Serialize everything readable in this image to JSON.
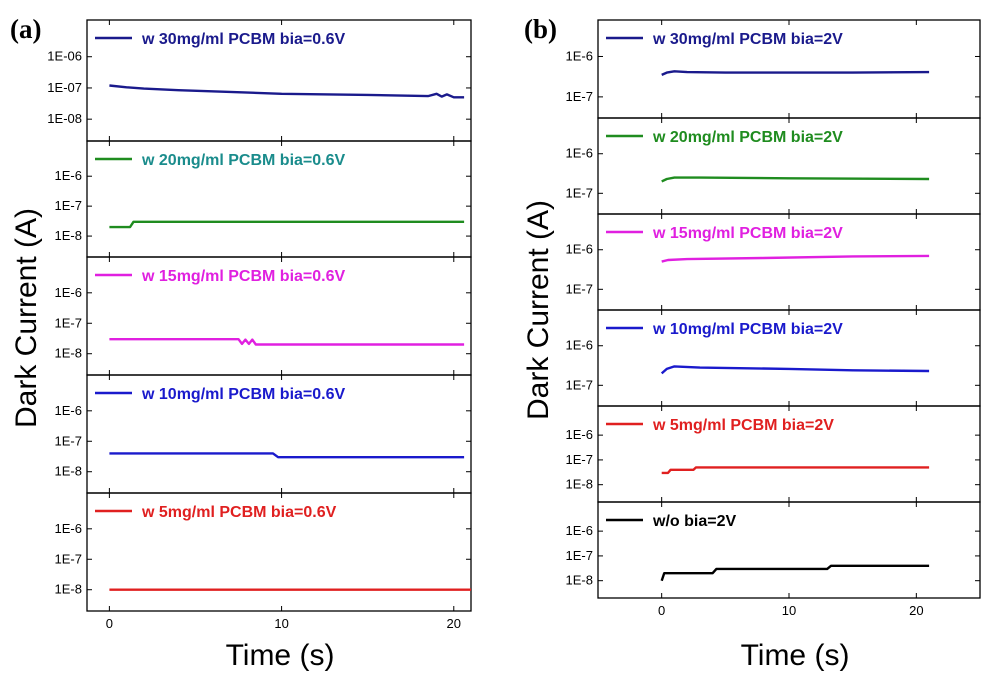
{
  "figure": {
    "ylabel": "Dark Current (A)",
    "xlabel": "Time (s)"
  },
  "chart_data": [
    {
      "type": "line",
      "panel_label": "(a)",
      "xlabel": "Time (s)",
      "ylabel": "Dark Current (A)",
      "xlim": [
        -1.3,
        21
      ],
      "x_ticks": [
        0,
        10,
        20
      ],
      "y_scale": "log",
      "grid": false,
      "legend_placement": "top-left",
      "series": [
        {
          "name": "w 30mg/ml PCBM bia=0.6V",
          "color": "#1a1a8c",
          "label_color": "#1a1a8c",
          "ylim": [
            2e-09,
            1.5e-05
          ],
          "y_ticks": [
            {
              "value": 1e-06,
              "label": "1E-06"
            },
            {
              "value": 1e-07,
              "label": "1E-07"
            },
            {
              "value": 1e-08,
              "label": "1E-08"
            }
          ],
          "points": [
            [
              0,
              1.2e-07
            ],
            [
              1,
              1.05e-07
            ],
            [
              2,
              9.5e-08
            ],
            [
              4,
              8.5e-08
            ],
            [
              7,
              7.5e-08
            ],
            [
              10,
              6.5e-08
            ],
            [
              15,
              6e-08
            ],
            [
              18.5,
              5.5e-08
            ],
            [
              19,
              6.5e-08
            ],
            [
              19.3,
              5.3e-08
            ],
            [
              19.6,
              6.2e-08
            ],
            [
              20,
              5e-08
            ],
            [
              20.6,
              5e-08
            ]
          ]
        },
        {
          "name": "w 20mg/ml PCBM bia=0.6V",
          "color": "#1f8c1f",
          "label_color": "#1a8c8c",
          "ylim": [
            2e-09,
            1.5e-05
          ],
          "y_ticks": [
            {
              "value": 1e-06,
              "label": "1E-6"
            },
            {
              "value": 1e-07,
              "label": "1E-7"
            },
            {
              "value": 1e-08,
              "label": "1E-8"
            }
          ],
          "points": [
            [
              0,
              2e-08
            ],
            [
              1.2,
              2e-08
            ],
            [
              1.4,
              3e-08
            ],
            [
              20.6,
              3e-08
            ]
          ]
        },
        {
          "name": "w 15mg/ml PCBM bia=0.6V",
          "color": "#e020e0",
          "label_color": "#e020e0",
          "ylim": [
            2e-09,
            1.5e-05
          ],
          "y_ticks": [
            {
              "value": 1e-06,
              "label": "1E-6"
            },
            {
              "value": 1e-07,
              "label": "1E-7"
            },
            {
              "value": 1e-08,
              "label": "1E-8"
            }
          ],
          "points": [
            [
              0,
              3e-08
            ],
            [
              7.5,
              3e-08
            ],
            [
              7.7,
              2.1e-08
            ],
            [
              7.9,
              2.9e-08
            ],
            [
              8.1,
              2.1e-08
            ],
            [
              8.3,
              2.9e-08
            ],
            [
              8.5,
              2e-08
            ],
            [
              20.6,
              2e-08
            ]
          ]
        },
        {
          "name": "w 10mg/ml PCBM bia=0.6V",
          "color": "#1a1acc",
          "label_color": "#1a1acc",
          "ylim": [
            2e-09,
            1.5e-05
          ],
          "y_ticks": [
            {
              "value": 1e-06,
              "label": "1E-6"
            },
            {
              "value": 1e-07,
              "label": "1E-7"
            },
            {
              "value": 1e-08,
              "label": "1E-8"
            }
          ],
          "points": [
            [
              0,
              4e-08
            ],
            [
              9.5,
              4e-08
            ],
            [
              9.8,
              3e-08
            ],
            [
              20.6,
              3e-08
            ]
          ]
        },
        {
          "name": "w 5mg/ml PCBM bia=0.6V",
          "color": "#e02020",
          "label_color": "#e02020",
          "ylim": [
            2e-09,
            1.5e-05
          ],
          "y_ticks": [
            {
              "value": 1e-06,
              "label": "1E-6"
            },
            {
              "value": 1e-07,
              "label": "1E-7"
            },
            {
              "value": 1e-08,
              "label": "1E-8"
            }
          ],
          "points": [
            [
              0,
              1e-08
            ],
            [
              21,
              1e-08
            ]
          ]
        }
      ]
    },
    {
      "type": "line",
      "panel_label": "(b)",
      "xlabel": "Time (s)",
      "ylabel": "Dark Current (A)",
      "xlim": [
        -5,
        25
      ],
      "x_ticks": [
        0,
        10,
        20
      ],
      "y_scale": "log",
      "grid": false,
      "legend_placement": "top-left",
      "series": [
        {
          "name": "w 30mg/ml PCBM bia=2V",
          "color": "#1a1a8c",
          "label_color": "#1a1a8c",
          "ylim": [
            3e-08,
            8e-06
          ],
          "y_ticks": [
            {
              "value": 1e-06,
              "label": "1E-6"
            },
            {
              "value": 1e-07,
              "label": "1E-7"
            }
          ],
          "points": [
            [
              0,
              3.5e-07
            ],
            [
              0.4,
              4e-07
            ],
            [
              1,
              4.3e-07
            ],
            [
              2,
              4.1e-07
            ],
            [
              5,
              4e-07
            ],
            [
              10,
              4e-07
            ],
            [
              15,
              4e-07
            ],
            [
              21,
              4.1e-07
            ]
          ]
        },
        {
          "name": "w 20mg/ml PCBM bia=2V",
          "color": "#1f8c1f",
          "label_color": "#1f8c1f",
          "ylim": [
            3e-08,
            8e-06
          ],
          "y_ticks": [
            {
              "value": 1e-06,
              "label": "1E-6"
            },
            {
              "value": 1e-07,
              "label": "1E-7"
            }
          ],
          "points": [
            [
              0,
              2e-07
            ],
            [
              0.4,
              2.3e-07
            ],
            [
              1,
              2.5e-07
            ],
            [
              3,
              2.5e-07
            ],
            [
              10,
              2.4e-07
            ],
            [
              21,
              2.3e-07
            ]
          ]
        },
        {
          "name": "w 15mg/ml PCBM bia=2V",
          "color": "#e020e0",
          "label_color": "#e020e0",
          "ylim": [
            3e-08,
            8e-06
          ],
          "y_ticks": [
            {
              "value": 1e-06,
              "label": "1E-6"
            },
            {
              "value": 1e-07,
              "label": "1E-7"
            }
          ],
          "points": [
            [
              0,
              5e-07
            ],
            [
              0.5,
              5.5e-07
            ],
            [
              2,
              5.8e-07
            ],
            [
              8,
              6.2e-07
            ],
            [
              15,
              6.8e-07
            ],
            [
              21,
              7e-07
            ]
          ]
        },
        {
          "name": "w 10mg/ml PCBM bia=2V",
          "color": "#1a1acc",
          "label_color": "#1a1acc",
          "ylim": [
            3e-08,
            8e-06
          ],
          "y_ticks": [
            {
              "value": 1e-06,
              "label": "1E-6"
            },
            {
              "value": 1e-07,
              "label": "1E-7"
            }
          ],
          "points": [
            [
              0,
              2e-07
            ],
            [
              0.4,
              2.6e-07
            ],
            [
              1,
              3e-07
            ],
            [
              3,
              2.8e-07
            ],
            [
              10,
              2.6e-07
            ],
            [
              15,
              2.4e-07
            ],
            [
              21,
              2.3e-07
            ]
          ]
        },
        {
          "name": "w 5mg/ml PCBM bia=2V",
          "color": "#e02020",
          "label_color": "#e02020",
          "ylim": [
            2e-09,
            1.5e-05
          ],
          "y_ticks": [
            {
              "value": 1e-06,
              "label": "1E-6"
            },
            {
              "value": 1e-07,
              "label": "1E-7"
            },
            {
              "value": 1e-08,
              "label": "1E-8"
            }
          ],
          "points": [
            [
              0,
              3e-08
            ],
            [
              0.5,
              3e-08
            ],
            [
              0.7,
              4e-08
            ],
            [
              2.5,
              4e-08
            ],
            [
              2.7,
              5e-08
            ],
            [
              21,
              5e-08
            ]
          ]
        },
        {
          "name": "w/o bia=2V",
          "color": "#000000",
          "label_color": "#000000",
          "ylim": [
            2e-09,
            1.5e-05
          ],
          "y_ticks": [
            {
              "value": 1e-06,
              "label": "1E-6"
            },
            {
              "value": 1e-07,
              "label": "1E-7"
            },
            {
              "value": 1e-08,
              "label": "1E-8"
            }
          ],
          "points": [
            [
              0,
              1e-08
            ],
            [
              0.2,
              2e-08
            ],
            [
              4,
              2e-08
            ],
            [
              4.3,
              3e-08
            ],
            [
              13,
              3e-08
            ],
            [
              13.3,
              4e-08
            ],
            [
              21,
              4e-08
            ]
          ]
        }
      ]
    }
  ]
}
